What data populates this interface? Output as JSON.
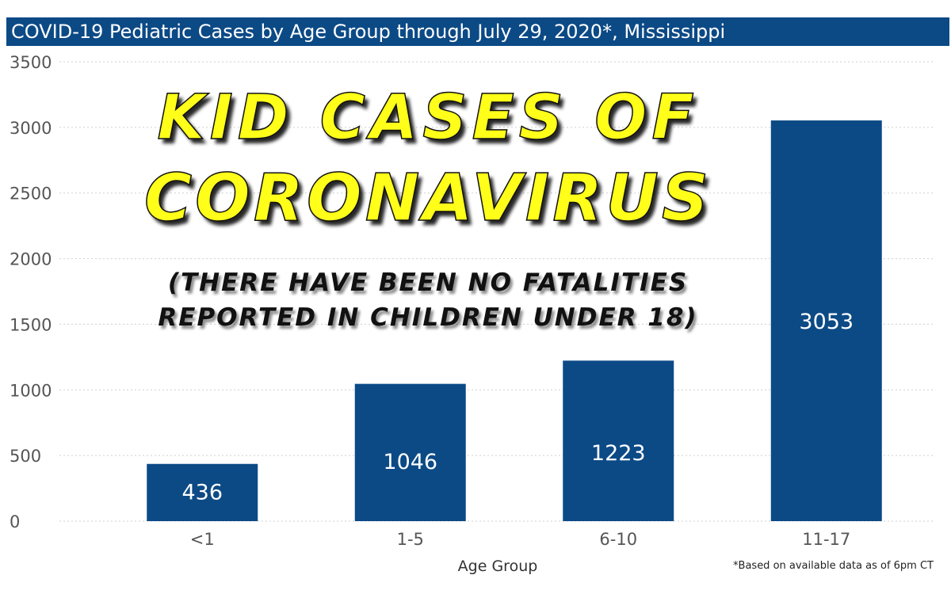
{
  "header": {
    "title": "COVID-19 Pediatric Cases by Age Group through July 29, 2020*, Mississippi"
  },
  "overlay": {
    "headline_line1": "Kid Cases of",
    "headline_line2": "Coronavirus",
    "subtext_line1": "(there have been no fatalities",
    "subtext_line2": "reported in children under 18)"
  },
  "colors": {
    "bar": "#0c4a86",
    "title_bar": "#0c4a86",
    "headline": "#ffff1a"
  },
  "chart_data": {
    "type": "bar",
    "title": "COVID-19 Pediatric Cases by Age Group through July 29, 2020*, Mississippi",
    "categories": [
      "<1",
      "1-5",
      "6-10",
      "11-17"
    ],
    "values": [
      436,
      1046,
      1223,
      3053
    ],
    "value_labels": [
      "436",
      "1046",
      "1223",
      "3053"
    ],
    "xlabel": "Age Group",
    "ylabel": "",
    "ylim": [
      0,
      3500
    ],
    "yticks": [
      0,
      500,
      1000,
      1500,
      2000,
      2500,
      3000,
      3500
    ],
    "ytick_labels": [
      "0",
      "500",
      "1000",
      "1500",
      "2000",
      "2500",
      "3000",
      "3500"
    ],
    "grid": true,
    "footnote": "*Based on available data as of 6pm CT"
  }
}
